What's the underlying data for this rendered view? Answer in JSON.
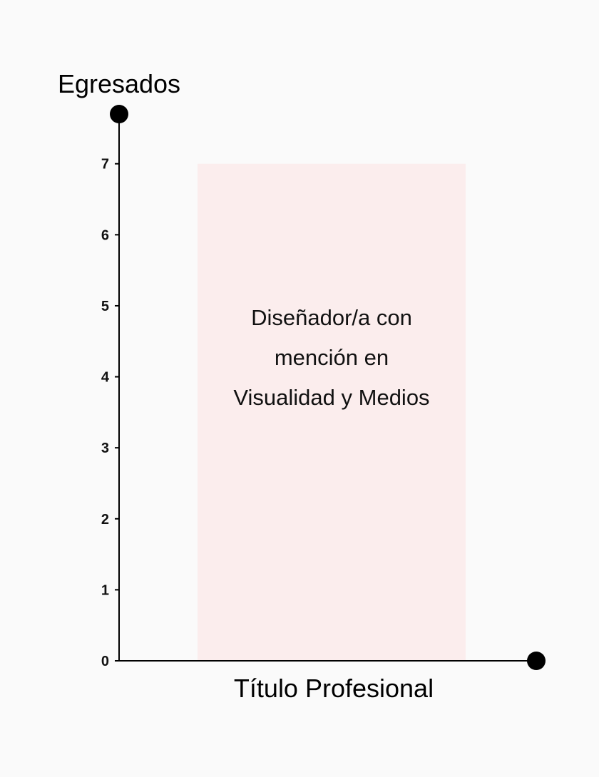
{
  "chart_data": {
    "type": "bar",
    "title": "",
    "ylabel": "Egresados",
    "xlabel": "Título Profesional",
    "ylim": [
      0,
      7.7
    ],
    "yticks": [
      0,
      1,
      2,
      3,
      4,
      5,
      6,
      7
    ],
    "grid": false,
    "categories": [
      [
        "Diseñador/a con",
        "mención en",
        "Visualidad y Medios"
      ]
    ],
    "values": [
      7
    ],
    "bar_color": "#fbeded",
    "axis_color": "#000000"
  }
}
